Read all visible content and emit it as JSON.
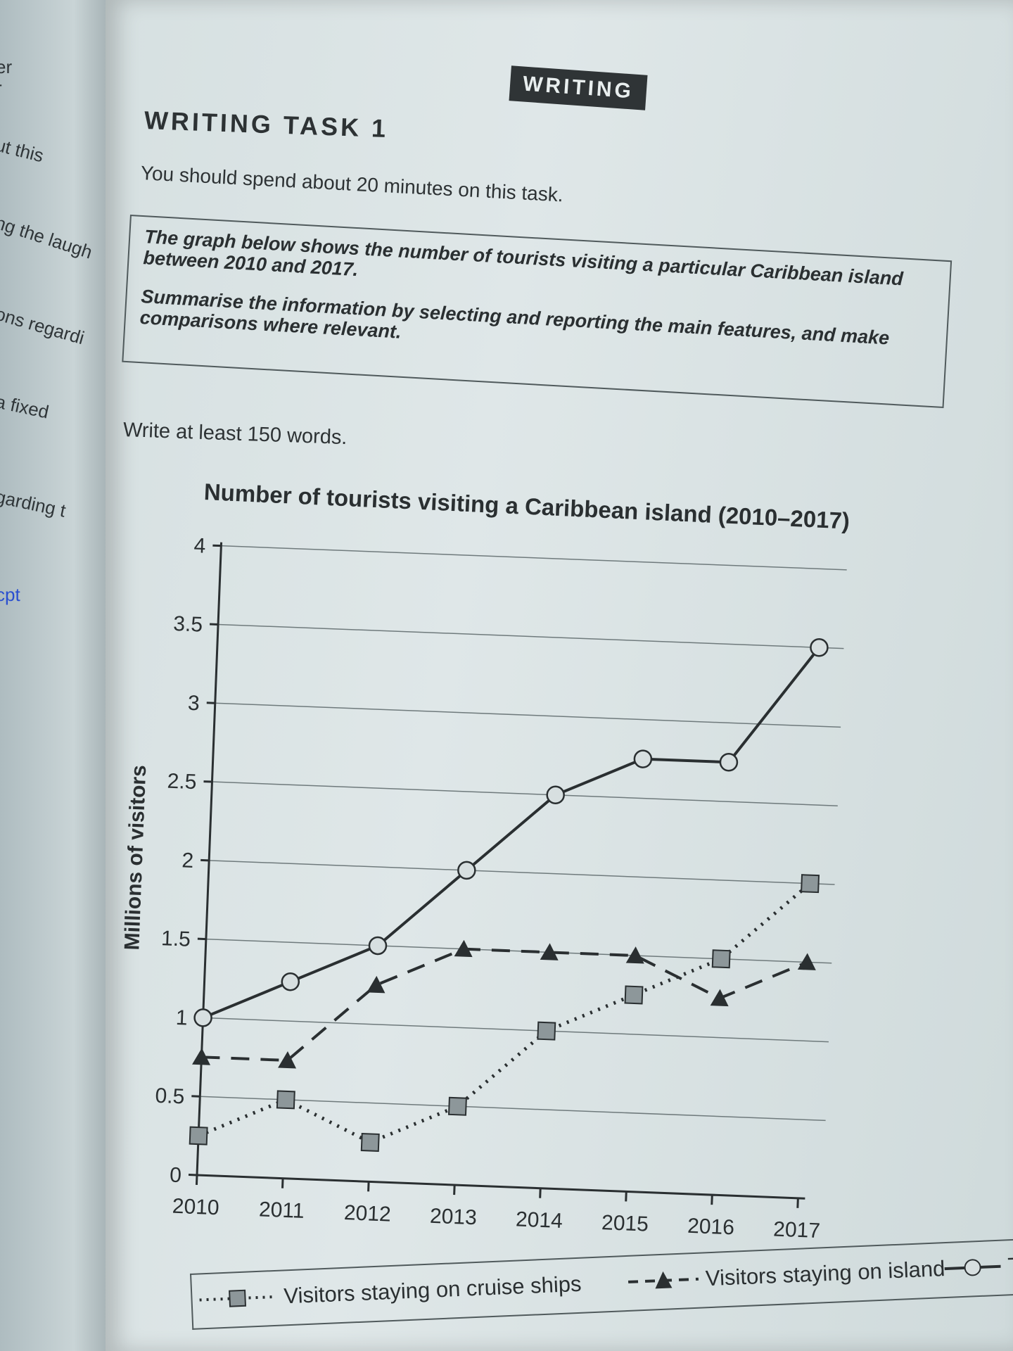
{
  "margin_fragments": [
    "er",
    "r",
    "ut this",
    "ng the laugh",
    "ons regardi",
    "a fixed",
    "garding t",
    "cpt"
  ],
  "header": {
    "badge": "WRITING",
    "task_title": "WRITING TASK 1"
  },
  "instruction": "You should spend about 20 minutes on this task.",
  "task_box": {
    "line1": "The graph below shows the number of tourists visiting a particular Caribbean island between 2010 and 2017.",
    "line2": "Summarise the information by selecting and reporting the main features, and make comparisons where relevant."
  },
  "word_count": "Write at least 150 words.",
  "chart_data": {
    "type": "line",
    "title": "Number of tourists visiting a Caribbean island (2010–2017)",
    "ylabel": "Millions of visitors",
    "xlabel": "",
    "x": [
      2010,
      2011,
      2012,
      2013,
      2014,
      2015,
      2016,
      2017
    ],
    "yticks": [
      0,
      0.5,
      1,
      1.5,
      2,
      2.5,
      3,
      3.5,
      4
    ],
    "ylim": [
      0,
      4
    ],
    "grid": true,
    "legend_position": "bottom",
    "series": [
      {
        "name": "Visitors staying on cruise ships",
        "marker": "square",
        "style": "dotted",
        "values": [
          0.25,
          0.5,
          0.25,
          0.5,
          1.0,
          1.25,
          1.5,
          2.0
        ]
      },
      {
        "name": "Visitors staying on island",
        "marker": "triangle",
        "style": "dashed",
        "values": [
          0.75,
          0.75,
          1.25,
          1.5,
          1.5,
          1.5,
          1.25,
          1.5
        ]
      },
      {
        "name": "Total",
        "marker": "circle",
        "style": "solid",
        "values": [
          1.0,
          1.25,
          1.5,
          2.0,
          2.5,
          2.75,
          2.75,
          3.5
        ]
      }
    ]
  },
  "colors": {
    "ink": "#2a2f31",
    "marker_fill": "#8d979a",
    "circle_fill": "#d7dfe0",
    "led": "#4cff5a"
  }
}
